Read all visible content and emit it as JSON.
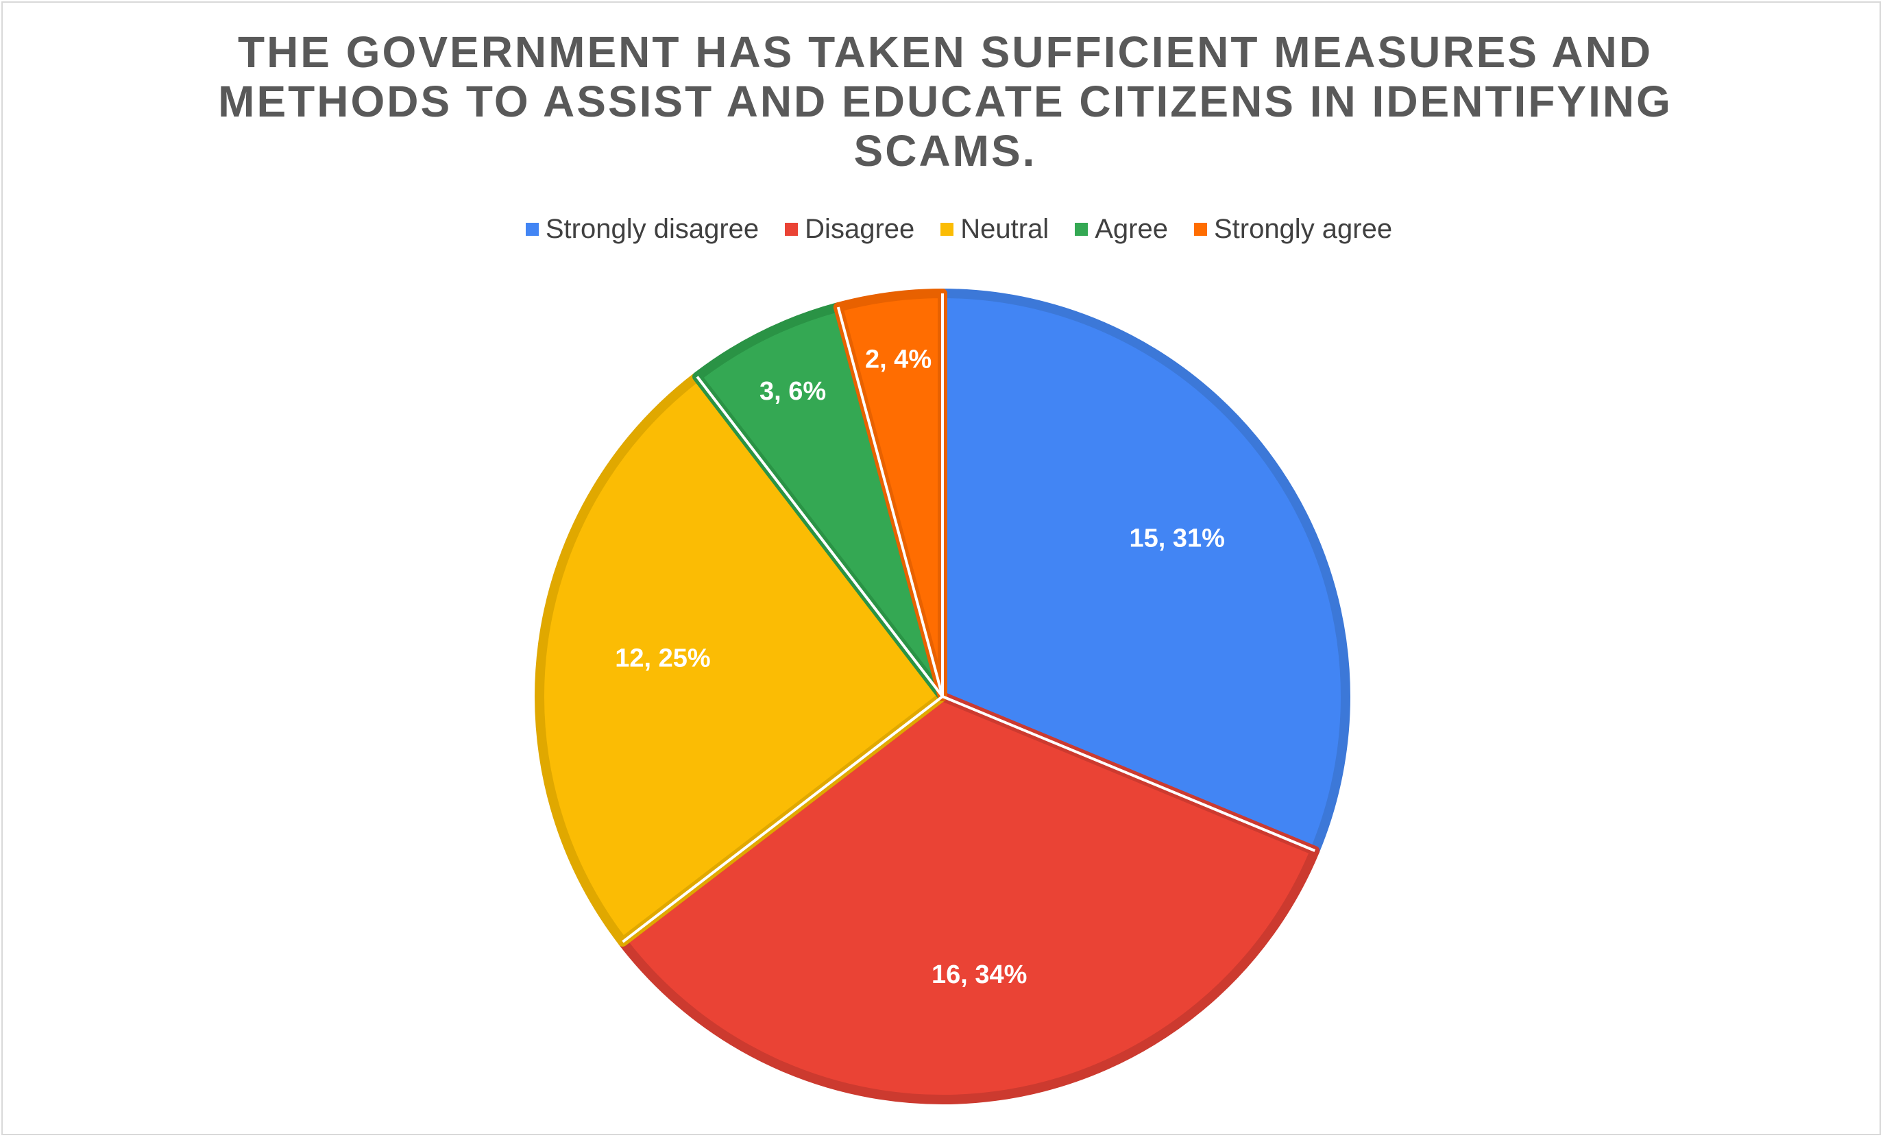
{
  "chart_data": {
    "type": "pie",
    "title": "THE GOVERNMENT HAS TAKEN SUFFICIENT MEASURES AND METHODS TO ASSIST AND EDUCATE CITIZENS IN IDENTIFYING SCAMS.",
    "legend_position": "top",
    "slices": [
      {
        "name": "Strongly disagree",
        "value": 15,
        "percent": 31,
        "label": "15, 31%",
        "color": "#4285F4",
        "border": "#3c78d8"
      },
      {
        "name": "Disagree",
        "value": 16,
        "percent": 34,
        "label": "16, 34%",
        "color": "#EA4335",
        "border": "#cc3a2f"
      },
      {
        "name": "Neutral",
        "value": 12,
        "percent": 25,
        "label": "12, 25%",
        "color": "#FBBC04",
        "border": "#e0a800"
      },
      {
        "name": "Agree",
        "value": 3,
        "percent": 6,
        "label": "3, 6%",
        "color": "#34A853",
        "border": "#2a9345"
      },
      {
        "name": "Strongly agree",
        "value": 2,
        "percent": 4,
        "label": "2, 4%",
        "color": "#FF6D01",
        "border": "#e86100"
      }
    ]
  }
}
